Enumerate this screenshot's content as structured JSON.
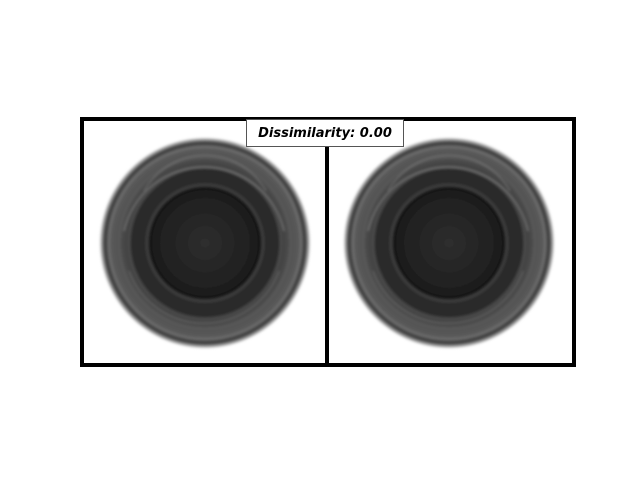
{
  "title": {
    "text": "Dissimilarity: 0.00"
  },
  "images": [
    {
      "name": "left-image",
      "subject": "lens-icon"
    },
    {
      "name": "right-image",
      "subject": "lens-icon"
    }
  ],
  "colors": {
    "frame": "#000000",
    "background": "#ffffff",
    "lens_outer": "#4a4a4a",
    "lens_inner": "#1e1e1e"
  }
}
